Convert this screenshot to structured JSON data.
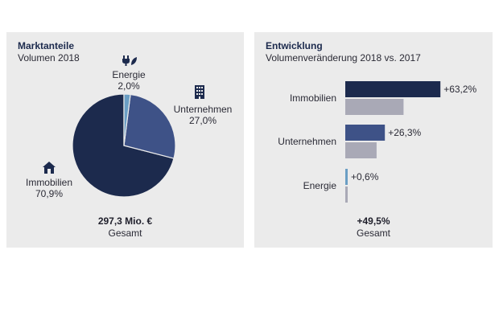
{
  "colors": {
    "immobilien": "#1c2a4d",
    "unternehmen": "#3e5287",
    "energie": "#6a9ec4",
    "prior_year": "#a9a9b6",
    "panel_bg": "#ebebeb"
  },
  "left": {
    "title": "Marktanteile",
    "subtitle": "Volumen 2018",
    "total_value": "297,3 Mio. €",
    "total_label": "Gesamt",
    "icons": {
      "energie": "plug-leaf-icon",
      "unternehmen": "office-building-icon",
      "immobilien": "house-icon"
    }
  },
  "right": {
    "title": "Entwicklung",
    "subtitle": "Volumenveränderung 2018 vs. 2017",
    "total_value": "+49,5%",
    "total_label": "Gesamt"
  },
  "chart_data": [
    {
      "type": "pie",
      "title": "Marktanteile",
      "subtitle": "Volumen 2018",
      "slices": [
        {
          "label": "Immobilien",
          "value": 70.9,
          "display": "70,9%",
          "color": "#1c2a4d"
        },
        {
          "label": "Unternehmen",
          "value": 27.0,
          "display": "27,0%",
          "color": "#3e5287"
        },
        {
          "label": "Energie",
          "value": 2.0,
          "display": "2,0%",
          "color": "#6a9ec4"
        }
      ]
    },
    {
      "type": "bar",
      "orientation": "horizontal",
      "title": "Entwicklung",
      "subtitle": "Volumenveränderung 2018 vs. 2017",
      "categories": [
        "Immobilien",
        "Unternehmen",
        "Energie"
      ],
      "series": [
        {
          "values": [
            63.2,
            26.3,
            0.6
          ],
          "labels": [
            "+63,2%",
            "+26,3%",
            "+0,6%"
          ],
          "colors": [
            "#1c2a4d",
            "#3e5287",
            "#6a9ec4"
          ]
        },
        {
          "values": [
            38.7,
            20.8,
            0.4
          ],
          "color": "#a9a9b6"
        }
      ]
    }
  ]
}
